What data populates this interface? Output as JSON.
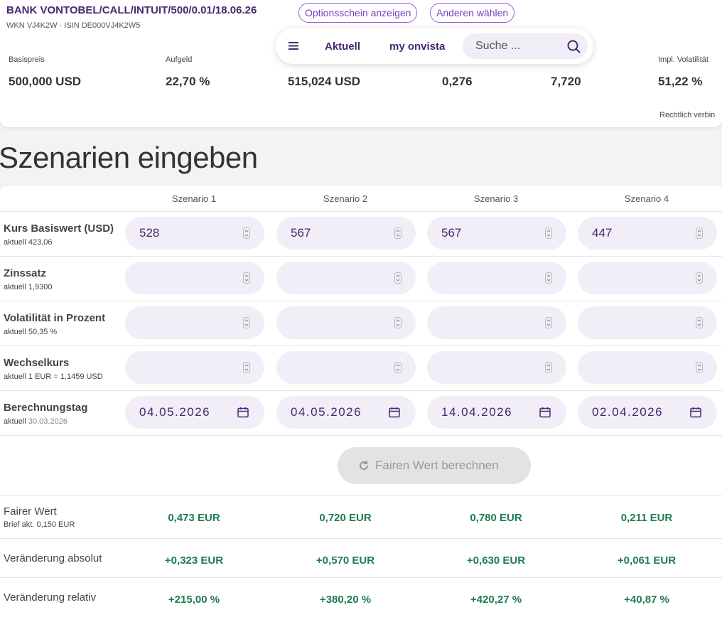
{
  "header": {
    "title": "BANK VONTOBEL/CALL/INTUIT/500/0.01/18.06.26",
    "ids": "WKN VJ4K2W · ISIN DE000VJ4K2W5",
    "buttons": [
      "Optionsschein anzeigen",
      "Anderen wählen"
    ]
  },
  "nav": {
    "links": [
      "Aktuell",
      "my onvista"
    ],
    "search_placeholder": "Suche ..."
  },
  "stats": [
    {
      "label": "Basispreis",
      "value": "500,000 USD"
    },
    {
      "label": "Aufgeld",
      "value": "22,70 %"
    },
    {
      "value": "515,024 USD"
    },
    {
      "value": "0,276"
    },
    {
      "value": "7,720"
    },
    {
      "label": "Impl. Volatilität",
      "value": "51,22 %"
    }
  ],
  "legal_note": "Rechtlich verbin",
  "section_title": "Szenarien eingeben",
  "scenarios": [
    "Szenario 1",
    "Szenario 2",
    "Szenario 3",
    "Szenario 4"
  ],
  "inputs": [
    {
      "label": "Kurs Basiswert (USD)",
      "note": "aktuell 423,06",
      "values": [
        "528",
        "567",
        "567",
        "447"
      ]
    },
    {
      "label": "Zinssatz",
      "note": "aktuell 1,9300"
    },
    {
      "label": "Volatilität in Prozent",
      "note": "aktuell 50,35 %"
    },
    {
      "label": "Wechselkurs",
      "note": "aktuell 1 EUR = 1,1459 USD"
    },
    {
      "label": "Berechnungstag",
      "note": "aktuell",
      "note_value": "30.03.2026",
      "dates": [
        "04.05.2026",
        "04.05.2026",
        "14.04.2026",
        "02.04.2026"
      ]
    }
  ],
  "button": "Fairen Wert berechnen",
  "results": [
    {
      "label": "Fairer Wert",
      "note": "Brief akt. 0,150 EUR",
      "values": [
        "0,473 EUR",
        "0,720 EUR",
        "0,780 EUR",
        "0,211 EUR"
      ]
    },
    {
      "label": "Veränderung absolut",
      "values": [
        "+0,323 EUR",
        "+0,570 EUR",
        "+0,630 EUR",
        "+0,061 EUR"
      ]
    },
    {
      "label": "Veränderung relativ",
      "values": [
        "+215,00 %",
        "+380,20 %",
        "+420,27 %",
        "+40,87 %"
      ]
    }
  ]
}
